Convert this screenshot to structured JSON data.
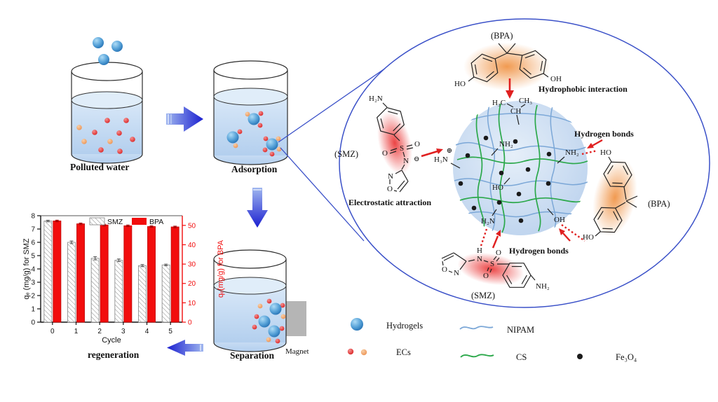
{
  "stages": {
    "polluted": "Polluted water",
    "adsorption": "Adsorption",
    "separation": "Separation",
    "magnet": "Magnet",
    "regeneration": "regeneration"
  },
  "legend": {
    "hydrogels": "Hydrogels",
    "ecs": "ECs",
    "nipam": "NIPAM",
    "cs": "CS",
    "fe3o4": "Fe₃O₄"
  },
  "mol": {
    "bpa_top_tag": "(BPA)",
    "bpa_top_ho": "HO",
    "bpa_top_oh": "OH",
    "hydrophobic": "Hydrophobic interaction",
    "iso_h3c": "H₃C",
    "iso_ch3": "CH₃",
    "iso_ch": "CH",
    "smz1_tag": "(SMZ)",
    "smz1_h2n": "H₂N",
    "smz1_o1": "O",
    "smz1_s": "S",
    "smz1_o2": "O",
    "smz1_n": "N",
    "smz1_minus": "⊖",
    "smz1_ring_n": "N",
    "smz1_ring_o": "O",
    "electrostatic": "Electrostatic attraction",
    "plus": "⊕",
    "h3n": "H₃N",
    "gel_nh2_top": "NH₂",
    "gel_ho": "HO",
    "gel_h2n": "H₂N",
    "gel_oh": "OH",
    "gel_nh2_right": "NH₂",
    "hbond_right": "Hydrogen bonds",
    "hbond_bottom": "Hydrogen bonds",
    "bpa_r_ho_top": "HO",
    "bpa_r_ho_bottom": "HO",
    "bpa_r_tag": "(BPA)",
    "smz2_ring_o": "O",
    "smz2_ring_n": "N",
    "smz2_h": "H",
    "smz2_n": "N",
    "smz2_s": "S",
    "smz2_o1": "O",
    "smz2_o2": "O",
    "smz2_nh2": "NH₂",
    "smz2_tag": "(SMZ)"
  },
  "colors": {
    "arrow_blue_dark": "#1b1fd0",
    "arrow_blue_light": "#9fb6ef",
    "ellipse_stroke": "#3a50c8",
    "red_accent": "#e02020",
    "nipam_line": "#7ba7d7",
    "cs_line": "#2ba84a",
    "water": "#c9dcf2",
    "magnet_gray": "#b5b5b5",
    "ec_red": "#e0302c",
    "ec_orange": "#efa268",
    "hydrogel_blue": "#2a78bc"
  },
  "chart_data": {
    "type": "bar",
    "categories": [
      "0",
      "1",
      "2",
      "3",
      "4",
      "5"
    ],
    "series": [
      {
        "name": "SMZ",
        "axis": "left",
        "style": "hatched",
        "color": "#ffffff",
        "values": [
          7.6,
          6.0,
          4.8,
          4.65,
          4.25,
          4.3
        ],
        "errors": [
          0.06,
          0.1,
          0.12,
          0.1,
          0.08,
          0.06
        ]
      },
      {
        "name": "BPA",
        "axis": "right",
        "style": "solid",
        "color": "#f20d0d",
        "values": [
          52.3,
          50.8,
          50.2,
          49.8,
          49.4,
          49.2
        ],
        "errors": [
          0.4,
          0.4,
          0.4,
          0.4,
          0.4,
          0.4
        ]
      }
    ],
    "xlabel": "Cycle",
    "ylabel_left": "qₑ (mg/g) for SMZ",
    "ylabel_right": "qₑ(mg/g) for BPA",
    "ylim_left": [
      0,
      8
    ],
    "ylim_right": [
      0,
      55
    ],
    "yticks_left": [
      0,
      1,
      2,
      3,
      4,
      5,
      6,
      7,
      8
    ],
    "yticks_right": [
      0,
      10,
      20,
      30,
      40,
      50
    ],
    "grid": false,
    "legend_position": "top-inside"
  }
}
